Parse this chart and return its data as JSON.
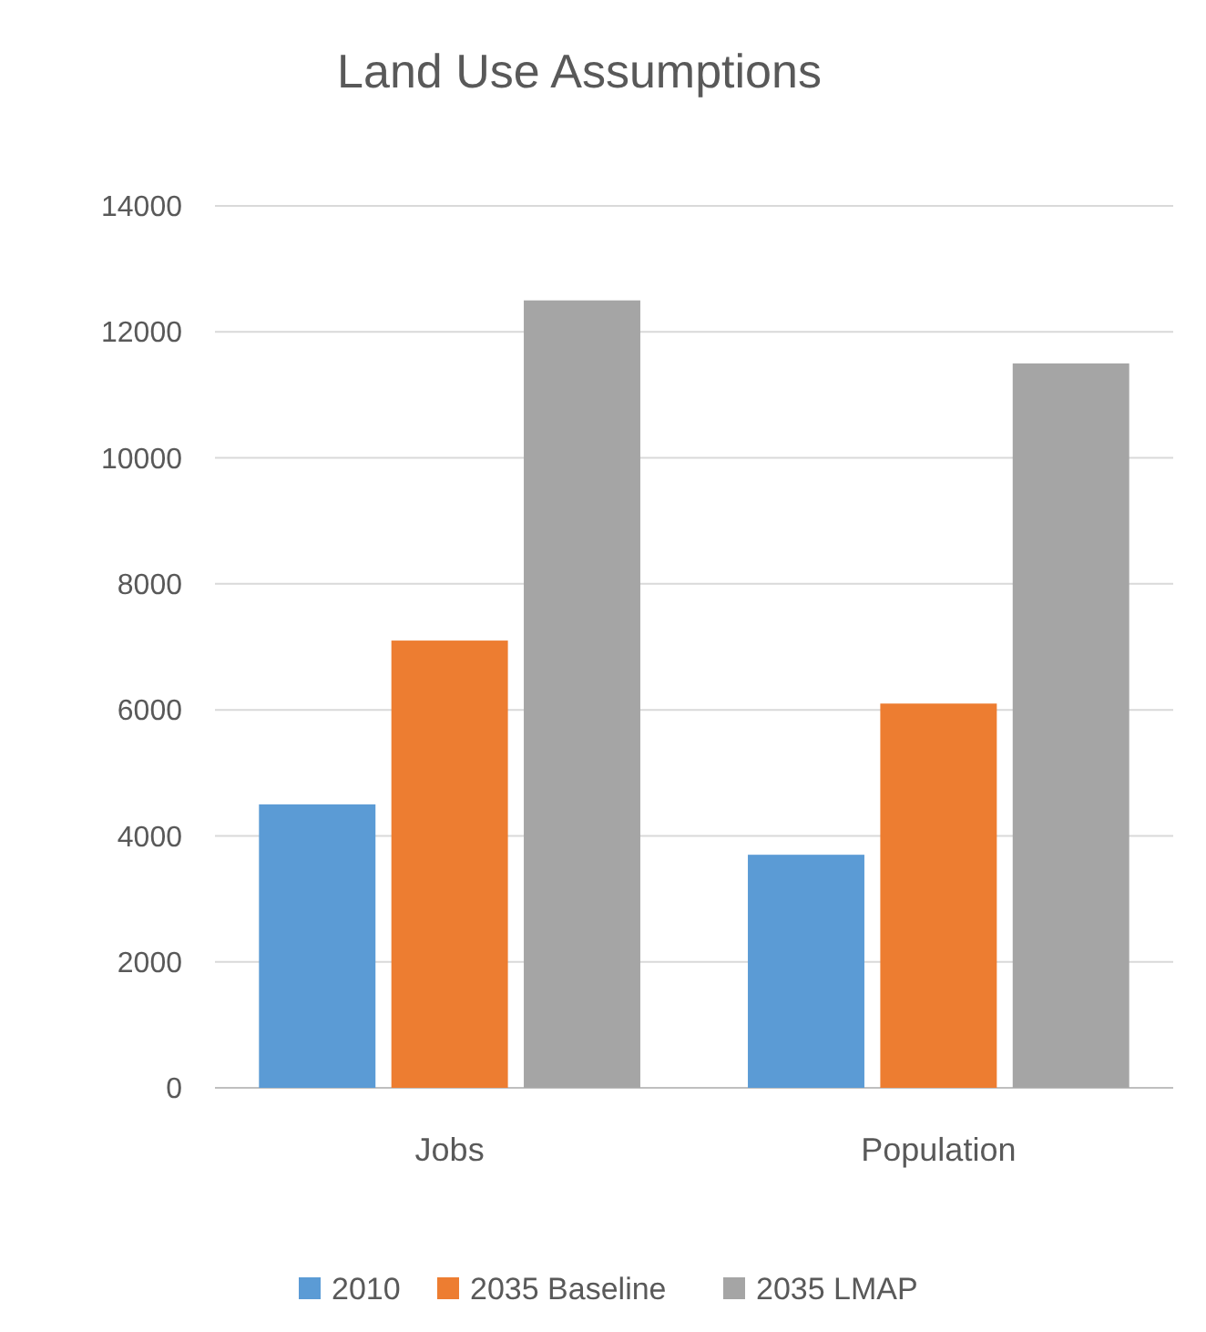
{
  "chart_data": {
    "type": "bar",
    "title": "Land Use Assumptions",
    "categories": [
      "Jobs",
      "Population"
    ],
    "series": [
      {
        "name": "2010",
        "color": "#5b9bd5",
        "values": [
          4500,
          3700
        ]
      },
      {
        "name": "2035 Baseline",
        "color": "#ed7d31",
        "values": [
          7100,
          6100
        ]
      },
      {
        "name": "2035 LMAP",
        "color": "#a5a5a5",
        "values": [
          12500,
          11500
        ]
      }
    ],
    "ylim": [
      0,
      14000
    ],
    "yticks": [
      0,
      2000,
      4000,
      6000,
      8000,
      10000,
      12000,
      14000
    ],
    "grid": "y",
    "legend": "bottom"
  }
}
